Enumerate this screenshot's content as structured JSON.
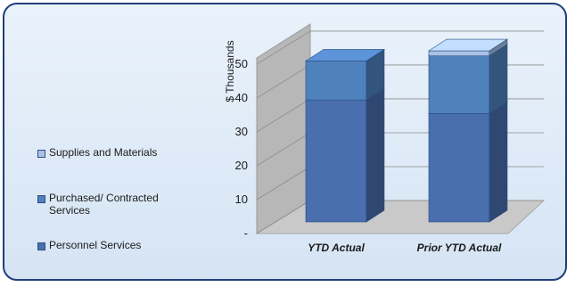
{
  "chart_data": {
    "type": "bar",
    "stacked": true,
    "categories": [
      "YTD Actual",
      "Prior YTD Actual"
    ],
    "series": [
      {
        "name": "Personnel Services",
        "values": [
          36,
          32
        ],
        "color": "#4a6fae"
      },
      {
        "name": "Purchased/ Contracted Services",
        "values": [
          11.5,
          17
        ],
        "color": "#4f81bd"
      },
      {
        "name": "Supplies and Materials",
        "values": [
          0,
          1.5
        ],
        "color": "#a9c2e6"
      }
    ],
    "ylabel": "$ Thousands",
    "yticks": [
      "-",
      "10",
      "20",
      "30",
      "40",
      "50"
    ],
    "ylim": [
      0,
      50
    ],
    "legend_position": "left",
    "grid": true
  }
}
